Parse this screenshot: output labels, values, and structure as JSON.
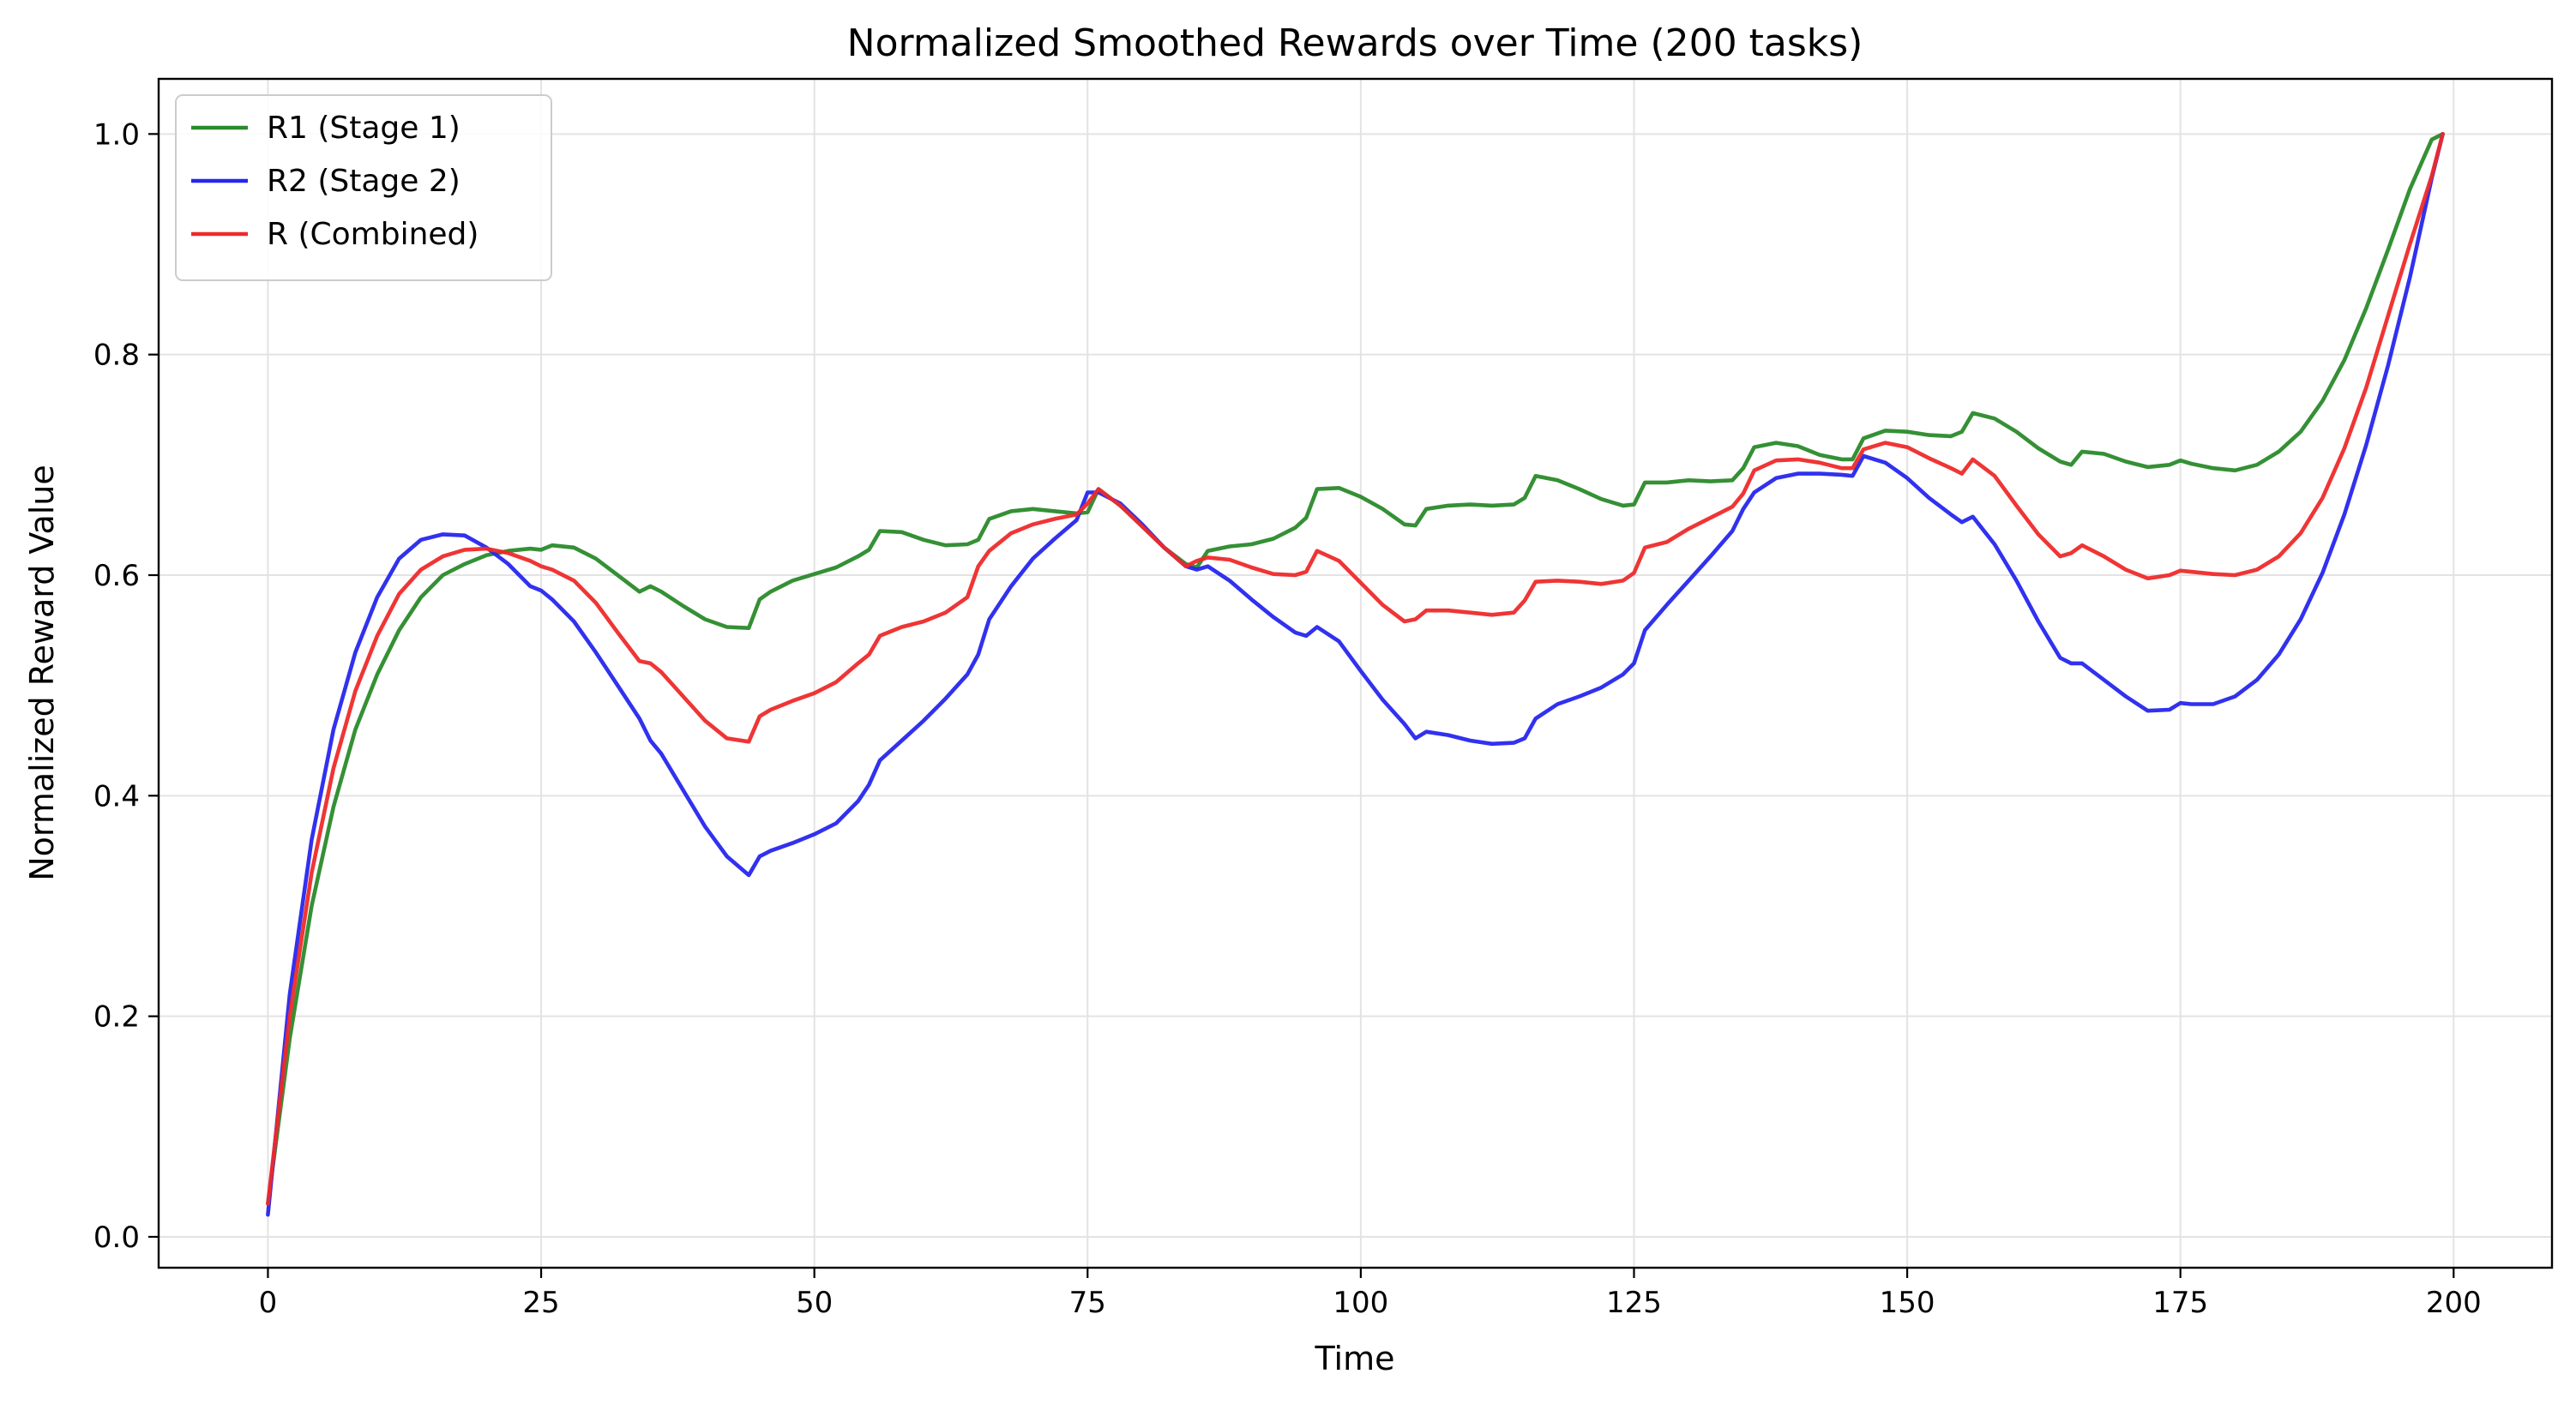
{
  "chart_data": {
    "type": "line",
    "title": "Normalized Smoothed Rewards over Time (200 tasks)",
    "xlabel": "Time",
    "ylabel": "Normalized Reward Value",
    "xlim": [
      -10,
      209
    ],
    "ylim": [
      -0.028,
      1.05
    ],
    "xticks": [
      0,
      25,
      50,
      75,
      100,
      125,
      150,
      175,
      200
    ],
    "xtick_labels": [
      "0",
      "25",
      "50",
      "75",
      "100",
      "125",
      "150",
      "175",
      "200"
    ],
    "yticks": [
      0.0,
      0.2,
      0.4,
      0.6,
      0.8,
      1.0
    ],
    "ytick_labels": [
      "0.0",
      "0.2",
      "0.4",
      "0.6",
      "0.8",
      "1.0"
    ],
    "grid": true,
    "legend_position": "upper-left",
    "series": [
      {
        "name": "R1 (Stage 1)",
        "color": "#2a8a2a",
        "x": [
          0,
          2,
          4,
          6,
          8,
          10,
          12,
          14,
          16,
          18,
          20,
          22,
          24,
          25,
          26,
          28,
          30,
          32,
          34,
          35,
          36,
          38,
          40,
          42,
          44,
          45,
          46,
          48,
          50,
          52,
          54,
          55,
          56,
          58,
          60,
          62,
          64,
          65,
          66,
          68,
          70,
          72,
          74,
          75,
          76,
          78,
          80,
          82,
          84,
          85,
          86,
          88,
          90,
          92,
          94,
          95,
          96,
          98,
          100,
          102,
          104,
          105,
          106,
          108,
          110,
          112,
          114,
          115,
          116,
          118,
          120,
          122,
          124,
          125,
          126,
          128,
          130,
          132,
          134,
          135,
          136,
          138,
          140,
          142,
          144,
          145,
          146,
          148,
          150,
          152,
          154,
          155,
          156,
          158,
          160,
          162,
          164,
          165,
          166,
          168,
          170,
          172,
          174,
          175,
          176,
          178,
          180,
          182,
          184,
          186,
          188,
          190,
          192,
          194,
          196,
          198,
          199
        ],
        "y": [
          0.03,
          0.18,
          0.3,
          0.39,
          0.46,
          0.51,
          0.55,
          0.58,
          0.6,
          0.61,
          0.618,
          0.622,
          0.624,
          0.623,
          0.627,
          0.625,
          0.615,
          0.6,
          0.585,
          0.59,
          0.585,
          0.572,
          0.56,
          0.553,
          0.552,
          0.578,
          0.585,
          0.595,
          0.601,
          0.607,
          0.617,
          0.623,
          0.64,
          0.639,
          0.632,
          0.627,
          0.628,
          0.632,
          0.651,
          0.658,
          0.66,
          0.658,
          0.656,
          0.657,
          0.678,
          0.663,
          0.645,
          0.625,
          0.61,
          0.607,
          0.622,
          0.626,
          0.628,
          0.633,
          0.643,
          0.652,
          0.678,
          0.679,
          0.671,
          0.66,
          0.646,
          0.645,
          0.66,
          0.663,
          0.664,
          0.663,
          0.664,
          0.67,
          0.69,
          0.686,
          0.678,
          0.669,
          0.663,
          0.664,
          0.684,
          0.684,
          0.686,
          0.685,
          0.686,
          0.697,
          0.716,
          0.72,
          0.717,
          0.709,
          0.705,
          0.705,
          0.724,
          0.731,
          0.73,
          0.727,
          0.726,
          0.73,
          0.747,
          0.742,
          0.73,
          0.715,
          0.703,
          0.7,
          0.712,
          0.71,
          0.703,
          0.698,
          0.7,
          0.704,
          0.701,
          0.697,
          0.695,
          0.7,
          0.712,
          0.73,
          0.758,
          0.795,
          0.842,
          0.895,
          0.95,
          0.995,
          1.0
        ]
      },
      {
        "name": "R2 (Stage 2)",
        "color": "#2626ee",
        "x": [
          0,
          2,
          4,
          6,
          8,
          10,
          12,
          14,
          16,
          18,
          20,
          22,
          24,
          25,
          26,
          28,
          30,
          32,
          34,
          35,
          36,
          38,
          40,
          42,
          44,
          45,
          46,
          48,
          50,
          52,
          54,
          55,
          56,
          58,
          60,
          62,
          64,
          65,
          66,
          68,
          70,
          72,
          74,
          75,
          76,
          78,
          80,
          82,
          84,
          85,
          86,
          88,
          90,
          92,
          94,
          95,
          96,
          98,
          100,
          102,
          104,
          105,
          106,
          108,
          110,
          112,
          114,
          115,
          116,
          118,
          120,
          122,
          124,
          125,
          126,
          128,
          130,
          132,
          134,
          135,
          136,
          138,
          140,
          142,
          144,
          145,
          146,
          148,
          150,
          152,
          154,
          155,
          156,
          158,
          160,
          162,
          164,
          165,
          166,
          168,
          170,
          172,
          174,
          175,
          176,
          178,
          180,
          182,
          184,
          186,
          188,
          190,
          192,
          194,
          196,
          198,
          199
        ],
        "y": [
          0.02,
          0.22,
          0.36,
          0.46,
          0.53,
          0.58,
          0.615,
          0.632,
          0.637,
          0.636,
          0.625,
          0.61,
          0.59,
          0.586,
          0.578,
          0.558,
          0.53,
          0.5,
          0.47,
          0.45,
          0.438,
          0.405,
          0.372,
          0.345,
          0.328,
          0.345,
          0.35,
          0.357,
          0.365,
          0.375,
          0.395,
          0.41,
          0.432,
          0.45,
          0.468,
          0.488,
          0.51,
          0.528,
          0.56,
          0.59,
          0.615,
          0.633,
          0.65,
          0.675,
          0.675,
          0.665,
          0.646,
          0.625,
          0.608,
          0.605,
          0.608,
          0.595,
          0.578,
          0.562,
          0.548,
          0.545,
          0.553,
          0.54,
          0.513,
          0.487,
          0.465,
          0.452,
          0.458,
          0.455,
          0.45,
          0.447,
          0.448,
          0.452,
          0.47,
          0.483,
          0.49,
          0.498,
          0.51,
          0.52,
          0.55,
          0.573,
          0.595,
          0.617,
          0.64,
          0.66,
          0.675,
          0.688,
          0.692,
          0.692,
          0.691,
          0.69,
          0.708,
          0.702,
          0.688,
          0.67,
          0.655,
          0.648,
          0.653,
          0.628,
          0.595,
          0.558,
          0.525,
          0.52,
          0.52,
          0.505,
          0.49,
          0.477,
          0.478,
          0.484,
          0.483,
          0.483,
          0.49,
          0.505,
          0.528,
          0.56,
          0.602,
          0.655,
          0.718,
          0.79,
          0.87,
          0.96,
          1.0
        ]
      },
      {
        "name": "R (Combined)",
        "color": "#ee2a2a",
        "x": [
          0,
          2,
          4,
          6,
          8,
          10,
          12,
          14,
          16,
          18,
          20,
          22,
          24,
          25,
          26,
          28,
          30,
          32,
          34,
          35,
          36,
          38,
          40,
          42,
          44,
          45,
          46,
          48,
          50,
          52,
          54,
          55,
          56,
          58,
          60,
          62,
          64,
          65,
          66,
          68,
          70,
          72,
          74,
          75,
          76,
          78,
          80,
          82,
          84,
          85,
          86,
          88,
          90,
          92,
          94,
          95,
          96,
          98,
          100,
          102,
          104,
          105,
          106,
          108,
          110,
          112,
          114,
          115,
          116,
          118,
          120,
          122,
          124,
          125,
          126,
          128,
          130,
          132,
          134,
          135,
          136,
          138,
          140,
          142,
          144,
          145,
          146,
          148,
          150,
          152,
          154,
          155,
          156,
          158,
          160,
          162,
          164,
          165,
          166,
          168,
          170,
          172,
          174,
          175,
          176,
          178,
          180,
          182,
          184,
          186,
          188,
          190,
          192,
          194,
          196,
          198,
          199
        ],
        "y": [
          0.03,
          0.2,
          0.33,
          0.425,
          0.495,
          0.545,
          0.583,
          0.605,
          0.617,
          0.623,
          0.624,
          0.62,
          0.613,
          0.608,
          0.605,
          0.595,
          0.575,
          0.548,
          0.522,
          0.52,
          0.512,
          0.49,
          0.468,
          0.452,
          0.449,
          0.472,
          0.478,
          0.486,
          0.493,
          0.503,
          0.52,
          0.528,
          0.545,
          0.553,
          0.558,
          0.566,
          0.58,
          0.608,
          0.622,
          0.638,
          0.646,
          0.651,
          0.655,
          0.665,
          0.678,
          0.663,
          0.644,
          0.625,
          0.608,
          0.613,
          0.616,
          0.614,
          0.607,
          0.601,
          0.6,
          0.603,
          0.622,
          0.613,
          0.593,
          0.573,
          0.558,
          0.56,
          0.568,
          0.568,
          0.566,
          0.564,
          0.566,
          0.577,
          0.594,
          0.595,
          0.594,
          0.592,
          0.595,
          0.602,
          0.625,
          0.63,
          0.642,
          0.652,
          0.662,
          0.674,
          0.695,
          0.704,
          0.705,
          0.702,
          0.697,
          0.697,
          0.714,
          0.72,
          0.716,
          0.706,
          0.697,
          0.692,
          0.705,
          0.69,
          0.663,
          0.637,
          0.617,
          0.62,
          0.627,
          0.617,
          0.605,
          0.597,
          0.6,
          0.604,
          0.603,
          0.601,
          0.6,
          0.605,
          0.617,
          0.638,
          0.67,
          0.715,
          0.77,
          0.835,
          0.9,
          0.962,
          1.0
        ]
      }
    ]
  }
}
